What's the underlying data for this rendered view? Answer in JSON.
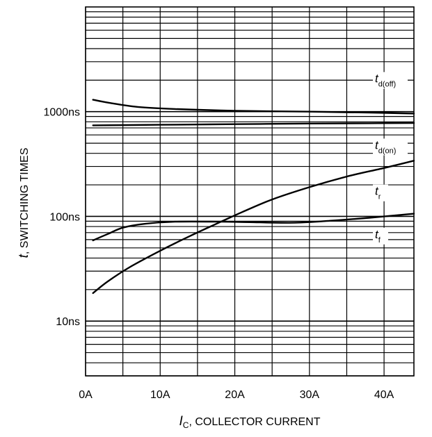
{
  "chart_data": {
    "type": "line",
    "xlabel": {
      "symbol": "I",
      "subscript": "C",
      "text": ", COLLECTOR CURRENT"
    },
    "ylabel": {
      "symbol": "t",
      "text": ", SWITCHING TIMES"
    },
    "x_unit": "A",
    "y_unit": "ns",
    "xlim": [
      0,
      44
    ],
    "ylim": [
      3,
      10000
    ],
    "yscale": "log",
    "grid": true,
    "x_ticks": [
      0,
      10,
      20,
      30,
      40
    ],
    "x_tick_labels": [
      "0A",
      "10A",
      "20A",
      "30A",
      "40A"
    ],
    "y_ticks": [
      10,
      100,
      1000
    ],
    "y_tick_labels": [
      "10ns",
      "100ns",
      "1000ns"
    ],
    "series": [
      {
        "name": "t_d(off)",
        "label_main": "t",
        "label_sub": "d(off)",
        "label_at": [
          44,
          1900
        ],
        "points": [
          [
            1,
            1300
          ],
          [
            3,
            1220
          ],
          [
            7,
            1110
          ],
          [
            12,
            1060
          ],
          [
            20,
            1020
          ],
          [
            30,
            1000
          ],
          [
            38,
            980
          ],
          [
            44,
            960
          ]
        ]
      },
      {
        "name": "t_d(on)",
        "label_main": "t",
        "label_sub": "d(on)",
        "label_at": [
          44,
          440
        ],
        "points": [
          [
            1,
            740
          ],
          [
            10,
            750
          ],
          [
            20,
            760
          ],
          [
            30,
            770
          ],
          [
            38,
            775
          ],
          [
            44,
            780
          ]
        ]
      },
      {
        "name": "t_r",
        "label_main": "t",
        "label_sub": "r",
        "label_at": [
          44,
          160
        ],
        "points": [
          [
            1,
            18.5
          ],
          [
            3,
            24
          ],
          [
            6,
            33
          ],
          [
            10,
            47
          ],
          [
            14,
            65
          ],
          [
            18,
            88
          ],
          [
            21,
            110
          ],
          [
            25,
            145
          ],
          [
            30,
            190
          ],
          [
            35,
            240
          ],
          [
            40,
            290
          ],
          [
            44,
            340
          ]
        ]
      },
      {
        "name": "t_f",
        "label_main": "t",
        "label_sub": "f",
        "label_at": [
          44,
          62
        ],
        "points": [
          [
            1,
            59
          ],
          [
            3,
            68
          ],
          [
            5,
            78
          ],
          [
            8,
            85
          ],
          [
            12,
            89
          ],
          [
            18,
            89
          ],
          [
            22,
            88
          ],
          [
            28,
            87
          ],
          [
            33,
            91
          ],
          [
            38,
            97
          ],
          [
            44,
            106
          ]
        ]
      }
    ]
  }
}
